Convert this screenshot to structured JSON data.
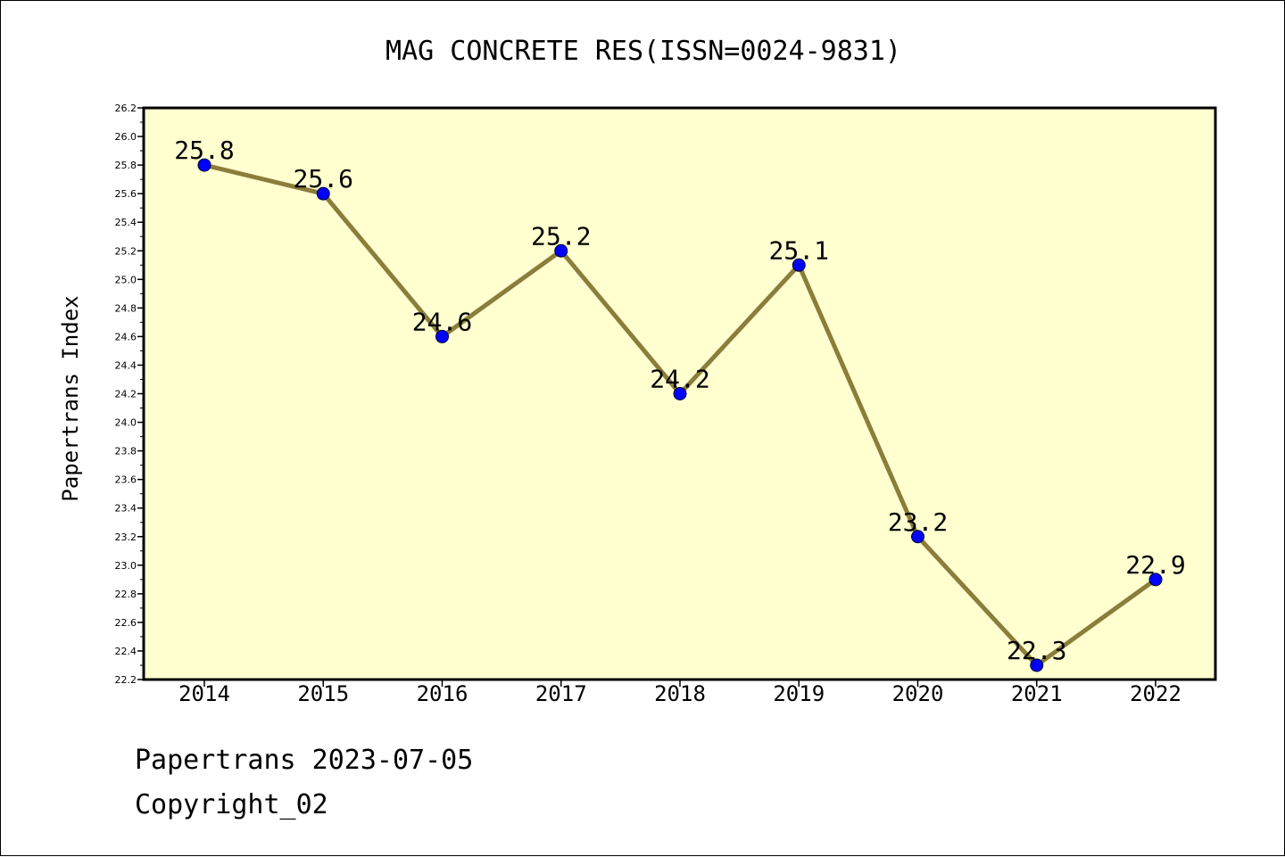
{
  "chart_data": {
    "type": "line",
    "title": "MAG CONCRETE RES(ISSN=0024-9831)",
    "xlabel": "",
    "ylabel": "Papertrans Index",
    "categories": [
      "2014",
      "2015",
      "2016",
      "2017",
      "2018",
      "2019",
      "2020",
      "2021",
      "2022"
    ],
    "series": [
      {
        "values": [
          25.8,
          25.6,
          24.6,
          25.2,
          24.2,
          25.1,
          23.2,
          22.3,
          22.9
        ]
      }
    ],
    "data_labels": [
      "25.8",
      "25.6",
      "24.6",
      "25.2",
      "24.2",
      "25.1",
      "23.2",
      "22.3",
      "22.9"
    ],
    "ylim": [
      22.2,
      26.2
    ],
    "yticks": [
      "22.2",
      "22.4",
      "22.6",
      "22.8",
      "23.0",
      "23.2",
      "23.4",
      "23.6",
      "23.8",
      "24.0",
      "24.2",
      "24.4",
      "24.6",
      "24.8",
      "25.0",
      "25.2",
      "25.4",
      "25.6",
      "25.8",
      "26.0",
      "26.2"
    ],
    "grid": false,
    "colors": {
      "line": "#8b7d3a",
      "marker": "#0000ff",
      "plot_background": "#ffffd0"
    }
  },
  "footer": {
    "line1": "Papertrans 2023-07-05",
    "line2": "Copyright_02"
  }
}
